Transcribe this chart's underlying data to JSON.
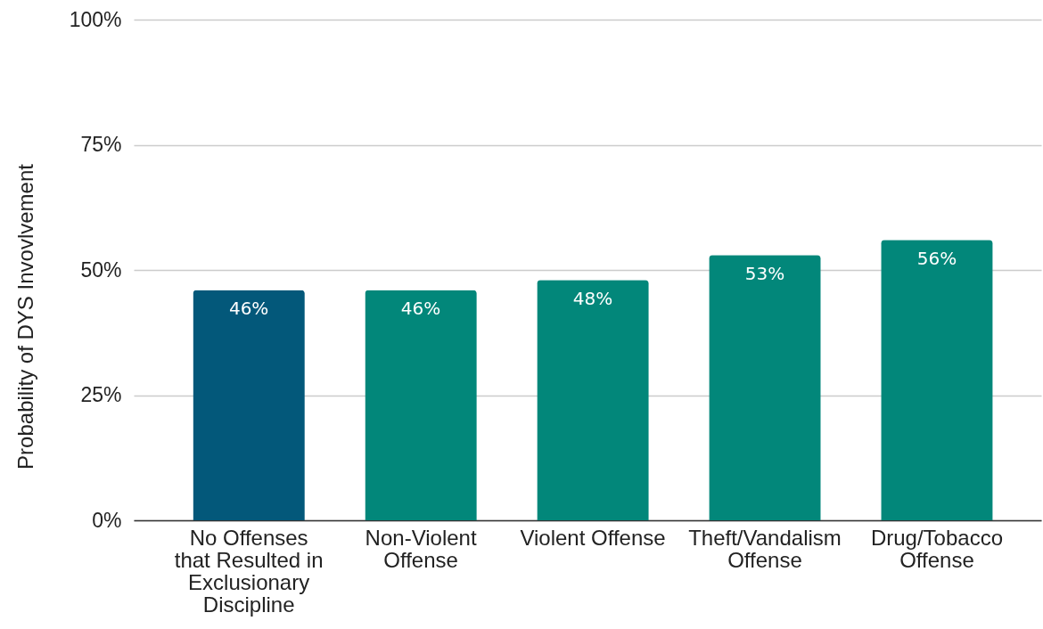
{
  "chart_data": {
    "type": "bar",
    "ylabel": "Probability of DYS Invovlvement",
    "categories": [
      "No Offenses that Resulted in Exclusionary Discipline",
      "Non-Violent Offense",
      "Violent Offense",
      "Theft/Vandalism Offense",
      "Drug/Tobacco Offense"
    ],
    "values": [
      46,
      46,
      48,
      53,
      56
    ],
    "colors": [
      "#03587a",
      "#02877a",
      "#02877a",
      "#02877a",
      "#02877a"
    ],
    "value_labels": [
      "46%",
      "46%",
      "48%",
      "53%",
      "56%"
    ],
    "ylim": [
      0,
      100
    ],
    "yticks": [
      {
        "value": 0,
        "label": "0%"
      },
      {
        "value": 25,
        "label": "25%"
      },
      {
        "value": 50,
        "label": "50%"
      },
      {
        "value": 75,
        "label": "75%"
      },
      {
        "value": 100,
        "label": "100%"
      }
    ],
    "grid": "y"
  }
}
